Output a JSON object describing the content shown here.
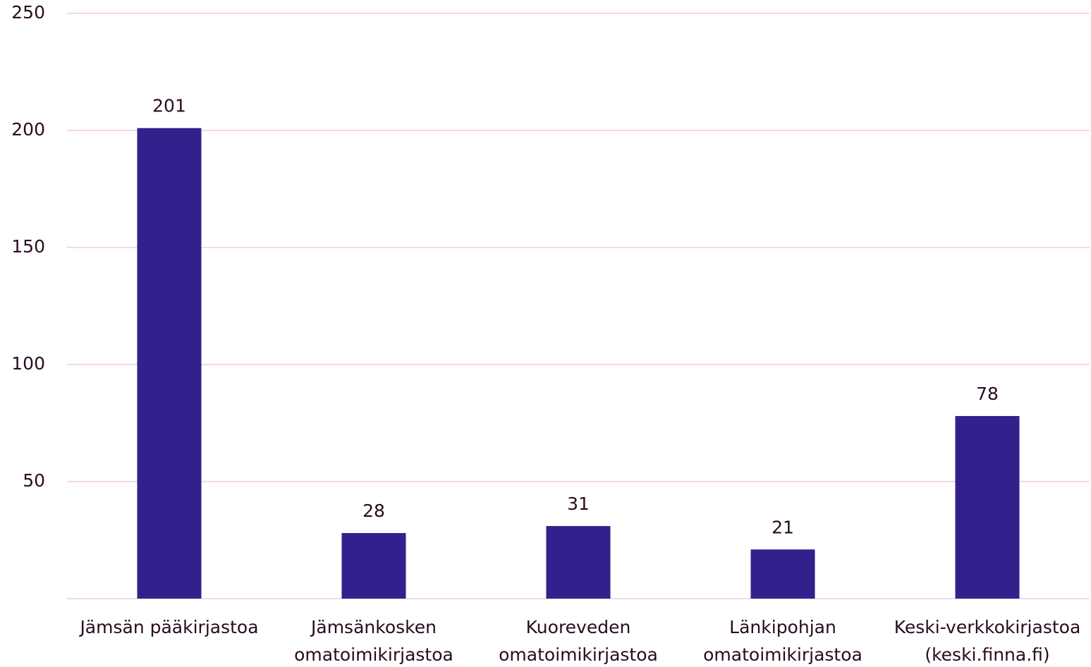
{
  "chart_data": {
    "type": "bar",
    "categories": [
      "Jämsän pääkirjastoa",
      "Jämsänkosken omatoimikirjastoa",
      "Kuoreveden omatoimikirjastoa",
      "Länkipohjan omatoimikirjastoa",
      "Keski-verkkokirjastoa (keski.finna.fi)"
    ],
    "values": [
      201,
      28,
      31,
      21,
      78
    ],
    "color": "#33208c",
    "ylim": [
      0,
      250
    ],
    "yticks": [
      50,
      100,
      150,
      200,
      250
    ],
    "grid": true
  }
}
